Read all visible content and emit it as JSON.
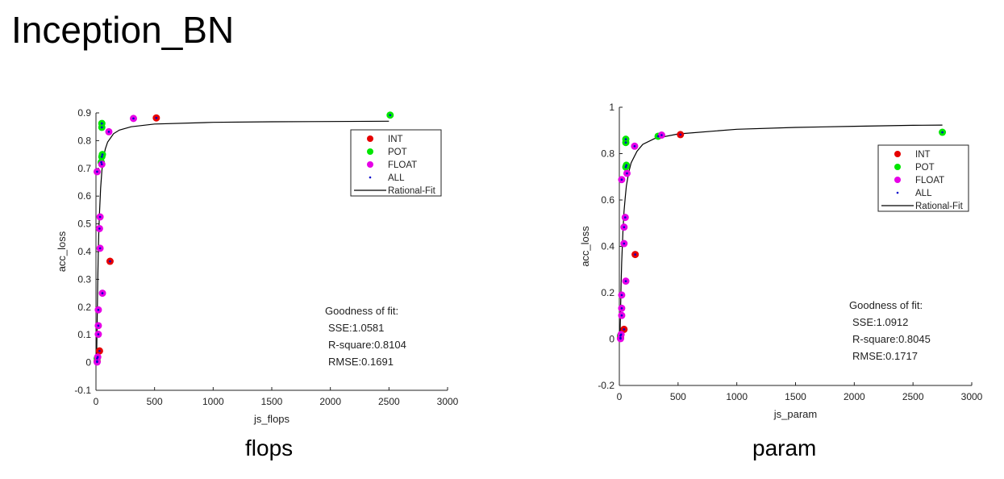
{
  "page": {
    "title": "Inception_BN"
  },
  "colors": {
    "INT": "#e60000",
    "POT": "#00e600",
    "FLOAT": "#e600e6",
    "ALL": "#0000cc",
    "fit": "#000000"
  },
  "chart_data": [
    {
      "type": "scatter",
      "caption": "flops",
      "xlabel": "js_flops",
      "ylabel": "acc_loss",
      "xlim": [
        0,
        3000
      ],
      "ylim": [
        -0.1,
        0.9
      ],
      "xticks": [
        0,
        500,
        1000,
        1500,
        2000,
        2500,
        3000
      ],
      "yticks": [
        -0.1,
        0,
        0.1,
        0.2,
        0.3,
        0.4,
        0.5,
        0.6,
        0.7,
        0.8,
        0.9
      ],
      "xtick_labels": [
        "0",
        "500",
        "1000",
        "1500",
        "2000",
        "2500",
        "3000"
      ],
      "ytick_labels": [
        "-0.1",
        "0",
        "0.1",
        "0.2",
        "0.3",
        "0.4",
        "0.5",
        "0.6",
        "0.7",
        "0.8",
        "0.9"
      ],
      "legend": [
        "INT",
        "POT",
        "FLOAT",
        "ALL",
        "Rational-Fit"
      ],
      "legend_position": "top-right",
      "series": [
        {
          "name": "INT",
          "points": [
            [
              515,
              0.882
            ],
            [
              120,
              0.365
            ],
            [
              30,
              0.042
            ],
            [
              10,
              0.005
            ]
          ]
        },
        {
          "name": "POT",
          "points": [
            [
              2510,
              0.892
            ],
            [
              50,
              0.862
            ],
            [
              50,
              0.848
            ],
            [
              55,
              0.75
            ],
            [
              50,
              0.742
            ],
            [
              45,
              0.722
            ],
            [
              10,
              0.015
            ]
          ]
        },
        {
          "name": "FLOAT",
          "points": [
            [
              320,
              0.88
            ],
            [
              110,
              0.832
            ],
            [
              50,
              0.715
            ],
            [
              10,
              0.688
            ],
            [
              35,
              0.525
            ],
            [
              30,
              0.483
            ],
            [
              35,
              0.412
            ],
            [
              55,
              0.25
            ],
            [
              20,
              0.19
            ],
            [
              20,
              0.133
            ],
            [
              20,
              0.102
            ],
            [
              15,
              0.02
            ],
            [
              10,
              0.002
            ]
          ]
        }
      ],
      "all_points": [
        [
          2510,
          0.892
        ],
        [
          515,
          0.882
        ],
        [
          320,
          0.88
        ],
        [
          50,
          0.862
        ],
        [
          50,
          0.848
        ],
        [
          110,
          0.832
        ],
        [
          55,
          0.75
        ],
        [
          50,
          0.742
        ],
        [
          45,
          0.722
        ],
        [
          50,
          0.715
        ],
        [
          10,
          0.688
        ],
        [
          35,
          0.525
        ],
        [
          30,
          0.483
        ],
        [
          35,
          0.412
        ],
        [
          120,
          0.365
        ],
        [
          55,
          0.25
        ],
        [
          20,
          0.19
        ],
        [
          20,
          0.133
        ],
        [
          20,
          0.102
        ],
        [
          30,
          0.042
        ],
        [
          15,
          0.02
        ],
        [
          10,
          0.015
        ],
        [
          10,
          0.005
        ],
        [
          10,
          0.002
        ]
      ],
      "fit_curve": [
        [
          5,
          0.0
        ],
        [
          10,
          0.15
        ],
        [
          15,
          0.29
        ],
        [
          20,
          0.4
        ],
        [
          25,
          0.48
        ],
        [
          30,
          0.54
        ],
        [
          40,
          0.63
        ],
        [
          50,
          0.69
        ],
        [
          60,
          0.73
        ],
        [
          80,
          0.77
        ],
        [
          100,
          0.795
        ],
        [
          150,
          0.825
        ],
        [
          200,
          0.838
        ],
        [
          300,
          0.85
        ],
        [
          500,
          0.86
        ],
        [
          1000,
          0.866
        ],
        [
          1500,
          0.868
        ],
        [
          2000,
          0.869
        ],
        [
          2500,
          0.87
        ]
      ],
      "goodness": {
        "heading": "Goodness of fit:",
        "sse": "SSE:1.0581",
        "rsquare": "R-square:0.8104",
        "rmse": "RMSE:0.1691"
      }
    },
    {
      "type": "scatter",
      "caption": "param",
      "xlabel": "js_param",
      "ylabel": "acc_loss",
      "xlim": [
        0,
        3000
      ],
      "ylim": [
        -0.2,
        1
      ],
      "xticks": [
        0,
        500,
        1000,
        1500,
        2000,
        2500,
        3000
      ],
      "yticks": [
        -0.2,
        0,
        0.2,
        0.4,
        0.6,
        0.8,
        1
      ],
      "xtick_labels": [
        "0",
        "500",
        "1000",
        "1500",
        "2000",
        "2500",
        "3000"
      ],
      "ytick_labels": [
        "-0.2",
        "0",
        "0.2",
        "0.4",
        "0.6",
        "0.8",
        "1"
      ],
      "legend": [
        "INT",
        "POT",
        "FLOAT",
        "ALL",
        "Rational-Fit"
      ],
      "legend_position": "top-right",
      "series": [
        {
          "name": "INT",
          "points": [
            [
              520,
              0.882
            ],
            [
              135,
              0.365
            ],
            [
              40,
              0.042
            ],
            [
              10,
              0.005
            ]
          ]
        },
        {
          "name": "POT",
          "points": [
            [
              2750,
              0.892
            ],
            [
              55,
              0.862
            ],
            [
              55,
              0.848
            ],
            [
              60,
              0.75
            ],
            [
              55,
              0.742
            ],
            [
              330,
              0.875
            ],
            [
              10,
              0.015
            ]
          ]
        },
        {
          "name": "FLOAT",
          "points": [
            [
              360,
              0.88
            ],
            [
              130,
              0.832
            ],
            [
              65,
              0.715
            ],
            [
              20,
              0.688
            ],
            [
              50,
              0.525
            ],
            [
              40,
              0.483
            ],
            [
              40,
              0.412
            ],
            [
              55,
              0.25
            ],
            [
              20,
              0.19
            ],
            [
              20,
              0.133
            ],
            [
              20,
              0.102
            ],
            [
              15,
              0.02
            ],
            [
              10,
              0.002
            ]
          ]
        }
      ],
      "all_points": [
        [
          2750,
          0.892
        ],
        [
          520,
          0.882
        ],
        [
          360,
          0.88
        ],
        [
          330,
          0.875
        ],
        [
          55,
          0.862
        ],
        [
          55,
          0.848
        ],
        [
          130,
          0.832
        ],
        [
          60,
          0.75
        ],
        [
          55,
          0.742
        ],
        [
          65,
          0.715
        ],
        [
          20,
          0.688
        ],
        [
          50,
          0.525
        ],
        [
          40,
          0.483
        ],
        [
          40,
          0.412
        ],
        [
          135,
          0.365
        ],
        [
          55,
          0.25
        ],
        [
          20,
          0.19
        ],
        [
          20,
          0.133
        ],
        [
          20,
          0.102
        ],
        [
          40,
          0.042
        ],
        [
          15,
          0.02
        ],
        [
          10,
          0.015
        ],
        [
          10,
          0.005
        ],
        [
          10,
          0.002
        ]
      ],
      "fit_curve": [
        [
          5,
          0.0
        ],
        [
          10,
          0.12
        ],
        [
          15,
          0.24
        ],
        [
          20,
          0.33
        ],
        [
          30,
          0.46
        ],
        [
          40,
          0.55
        ],
        [
          50,
          0.61
        ],
        [
          60,
          0.66
        ],
        [
          80,
          0.72
        ],
        [
          100,
          0.76
        ],
        [
          150,
          0.81
        ],
        [
          200,
          0.84
        ],
        [
          300,
          0.865
        ],
        [
          500,
          0.885
        ],
        [
          1000,
          0.905
        ],
        [
          1500,
          0.913
        ],
        [
          2000,
          0.918
        ],
        [
          2500,
          0.922
        ],
        [
          2750,
          0.923
        ]
      ],
      "goodness": {
        "heading": "Goodness of fit:",
        "sse": "SSE:1.0912",
        "rsquare": "R-square:0.8045",
        "rmse": "RMSE:0.1717"
      }
    }
  ]
}
